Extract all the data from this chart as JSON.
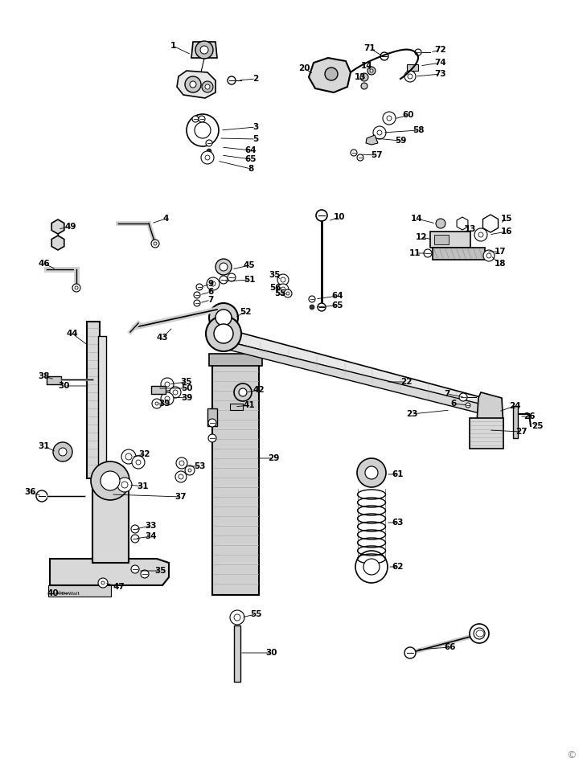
{
  "bg_color": "#ffffff",
  "lc": "#000000",
  "fig_width": 7.3,
  "fig_height": 9.59,
  "dpi": 100
}
